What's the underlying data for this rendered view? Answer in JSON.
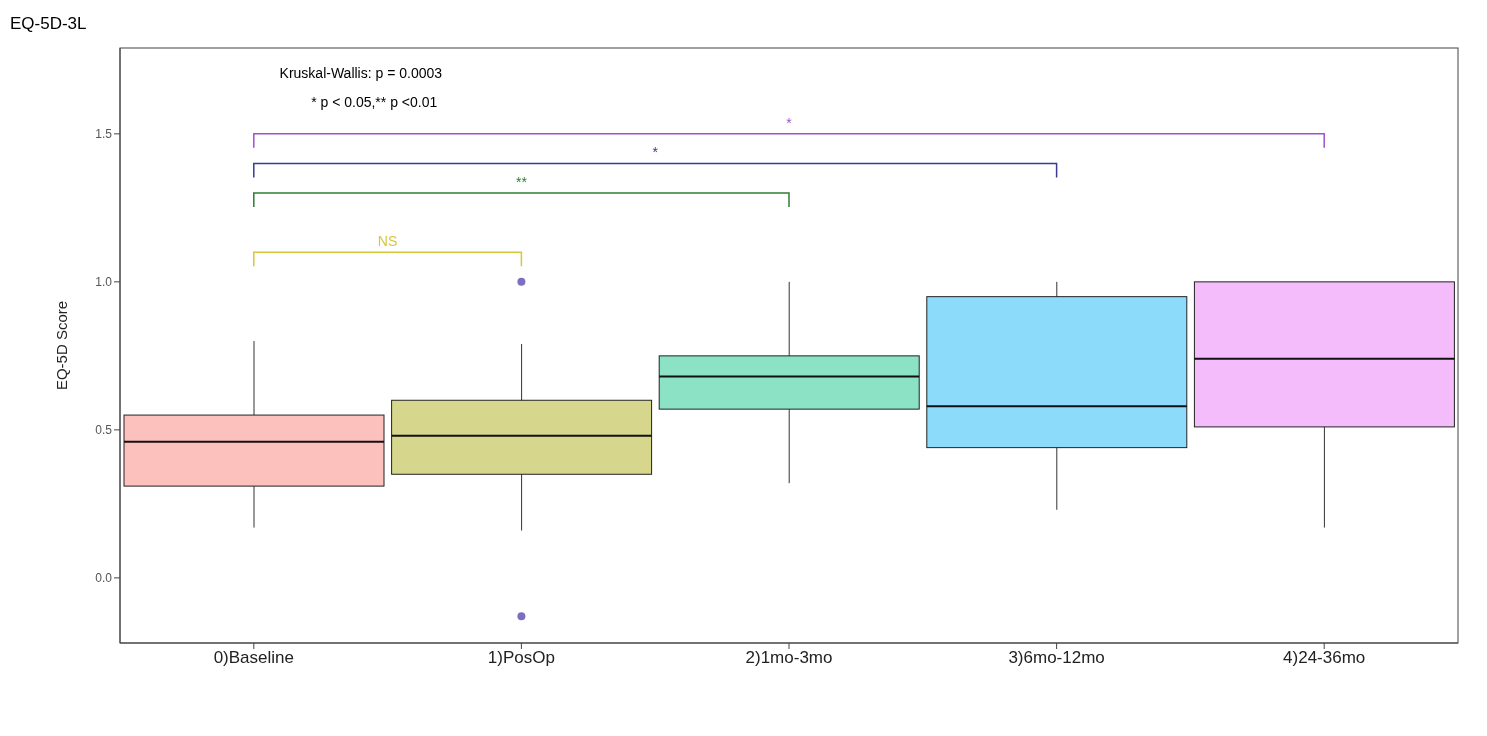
{
  "chart_data": {
    "type": "box",
    "title": "EQ-5D-3L",
    "ylabel": "EQ-5D Score",
    "categories": [
      "0)Baseline",
      "1)PosOp",
      "2)1mo-3mo",
      "3)6mo-12mo",
      "4)24-36mo"
    ],
    "colors": [
      "#f8766d",
      "#a3a500",
      "#00bf7d",
      "#00b0f6",
      "#e76bf3"
    ],
    "boxes": [
      {
        "low": 0.17,
        "q1": 0.31,
        "median": 0.46,
        "q3": 0.55,
        "high": 0.8
      },
      {
        "low": 0.16,
        "q1": 0.35,
        "median": 0.48,
        "q3": 0.6,
        "high": 0.79,
        "outliers": [
          1.0,
          -0.13
        ]
      },
      {
        "low": 0.32,
        "q1": 0.57,
        "median": 0.68,
        "q3": 0.75,
        "high": 1.0
      },
      {
        "low": 0.23,
        "q1": 0.44,
        "median": 0.58,
        "q3": 0.95,
        "high": 1.0
      },
      {
        "low": 0.17,
        "q1": 0.51,
        "median": 0.74,
        "q3": 1.0,
        "high": 1.0
      }
    ],
    "ylim": [
      -0.22,
      1.79
    ],
    "yticks": [
      {
        "value": 0,
        "label": "0.0"
      },
      {
        "value": 0.5,
        "label": "0.5"
      },
      {
        "value": 1,
        "label": "1.0"
      },
      {
        "value": 1.5,
        "label": "1.5"
      }
    ],
    "grid": false,
    "legend": false,
    "annotations": [
      "Kruskal-Wallis: p = 0.0003",
      "* p < 0.05,** p <0.01",
      "NS",
      "**",
      "*",
      "*"
    ]
  }
}
